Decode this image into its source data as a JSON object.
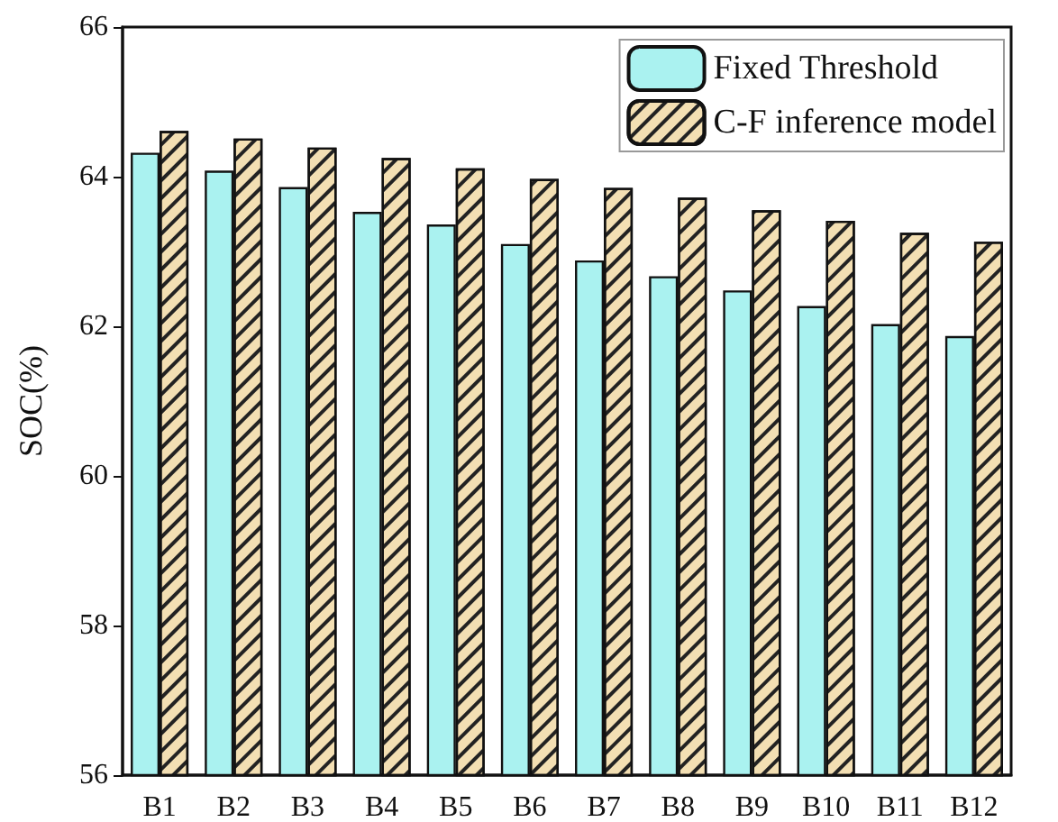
{
  "chart_data": {
    "type": "bar",
    "ylabel": "SOC(%)",
    "categories": [
      "B1",
      "B2",
      "B3",
      "B4",
      "B5",
      "B6",
      "B7",
      "B8",
      "B9",
      "B10",
      "B11",
      "B12"
    ],
    "series": [
      {
        "name": "Fixed Threshold",
        "color": "#aaf2f0",
        "values": [
          64.32,
          64.08,
          63.86,
          63.53,
          63.36,
          63.1,
          62.88,
          62.67,
          62.48,
          62.27,
          62.03,
          61.87
        ]
      },
      {
        "name": "C-F inference model",
        "color": "#f3dfb3",
        "values": [
          64.61,
          64.51,
          64.39,
          64.25,
          64.11,
          63.97,
          63.85,
          63.72,
          63.55,
          63.41,
          63.25,
          63.13
        ]
      }
    ],
    "ylim": [
      56,
      66
    ],
    "yticks": [
      56,
      58,
      60,
      62,
      64,
      66
    ],
    "grid": false,
    "legend": "top right"
  }
}
